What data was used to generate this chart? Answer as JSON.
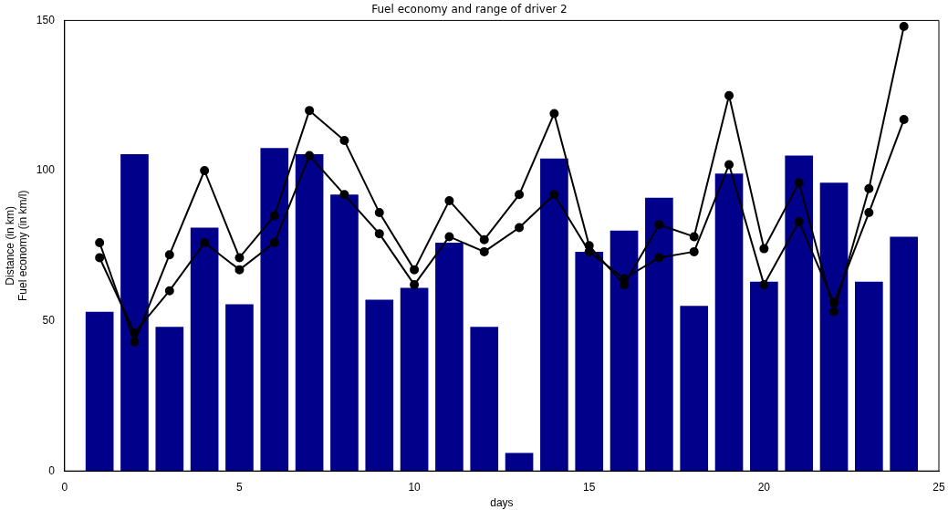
{
  "chart_data": {
    "type": "bar",
    "title": "Fuel economy and range of driver 2",
    "xlabel": "days",
    "ylabel": "Distance (in km)\nFuel economy (in km/l)",
    "x": [
      1,
      2,
      3,
      4,
      5,
      6,
      7,
      8,
      9,
      10,
      11,
      12,
      13,
      14,
      15,
      16,
      17,
      18,
      19,
      20,
      21,
      22,
      23,
      24
    ],
    "series": [
      {
        "color": "#00008b",
        "values": [
          53,
          105.5,
          48,
          81,
          55.5,
          107.5,
          105.5,
          92,
          57,
          61,
          76,
          48,
          6,
          104,
          73,
          80,
          91,
          55,
          99,
          63,
          105,
          96,
          63,
          78
        ]
      },
      {
        "type": "line",
        "color": "#000000",
        "values": [
          76,
          43,
          72,
          100,
          71,
          85,
          120,
          110,
          86,
          67,
          90,
          77,
          92,
          119,
          75,
          62,
          82,
          78,
          125,
          74,
          96,
          53,
          94,
          148
        ]
      },
      {
        "type": "line",
        "color": "#000000",
        "values": [
          71,
          46,
          60,
          76,
          67,
          76,
          105,
          92,
          79,
          62,
          78,
          73,
          81,
          92,
          73,
          64,
          71,
          73,
          102,
          62,
          83,
          56,
          86,
          117
        ]
      }
    ],
    "xlim": [
      0,
      25
    ],
    "xticks": [
      0,
      5,
      10,
      15,
      20,
      25
    ],
    "ylim": [
      0,
      150
    ],
    "yticks": [
      0,
      50,
      100,
      150
    ],
    "grid": false,
    "legend": false,
    "marker": "circle",
    "line_style": "solid"
  }
}
